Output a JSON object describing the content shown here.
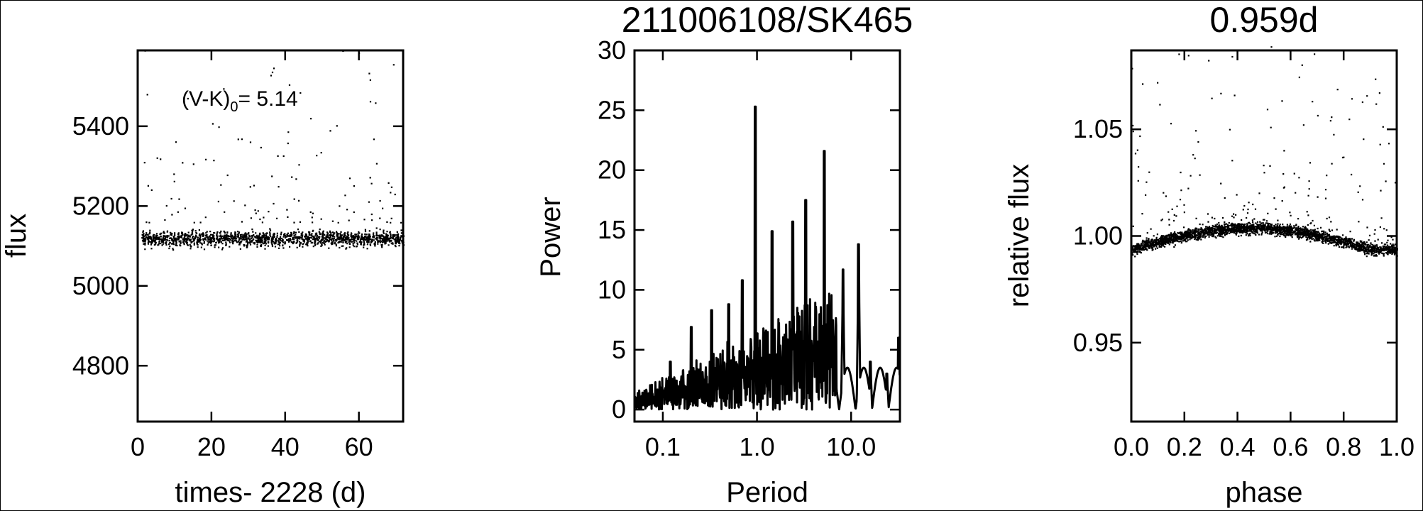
{
  "chart_data": [
    {
      "type": "scatter",
      "title": "",
      "xlabel": "times- 2228 (d)",
      "ylabel": "flux",
      "xlim": [
        0,
        72
      ],
      "ylim": [
        4660,
        5590
      ],
      "xticks": [
        "0",
        "20",
        "40",
        "60"
      ],
      "xtick_values": [
        0,
        20,
        40,
        60
      ],
      "yticks": [
        "4800",
        "5000",
        "5200",
        "5400"
      ],
      "ytick_values": [
        4800,
        5000,
        5200,
        5400
      ],
      "annotation": {
        "prefix": "(V-K)",
        "subscript": "0",
        "suffix": "= 5.14"
      },
      "description_values": {
        "baseline_flux": 5120,
        "scatter_band": [
          5080,
          5160
        ],
        "outliers_max": 5570
      }
    },
    {
      "type": "line",
      "title": "211006108/SK465",
      "xlabel": "Period",
      "ylabel": "Power",
      "xscale": "log",
      "xlim": [
        0.05,
        33
      ],
      "ylim": [
        -1,
        30
      ],
      "xticks": [
        "0.1",
        "1.0",
        "10.0"
      ],
      "xtick_values": [
        0.1,
        1.0,
        10.0
      ],
      "yticks": [
        "0",
        "5",
        "10",
        "15",
        "20",
        "25",
        "30"
      ],
      "ytick_values": [
        0,
        5,
        10,
        15,
        20,
        25,
        30
      ],
      "peaks": [
        {
          "period": 0.96,
          "power": 25.3
        },
        {
          "period": 5.2,
          "power": 21.6
        },
        {
          "period": 3.3,
          "power": 17.5
        },
        {
          "period": 1.45,
          "power": 14.9
        },
        {
          "period": 2.4,
          "power": 15.7
        },
        {
          "period": 12.0,
          "power": 13.8
        },
        {
          "period": 8.2,
          "power": 11.7
        },
        {
          "period": 0.7,
          "power": 10.8
        },
        {
          "period": 0.5,
          "power": 8.8
        },
        {
          "period": 0.33,
          "power": 8.3
        },
        {
          "period": 0.2,
          "power": 6.9
        },
        {
          "period": 0.12,
          "power": 4.0
        },
        {
          "period": 16.0,
          "power": 4.0
        },
        {
          "period": 24.0,
          "power": 3.0
        },
        {
          "period": 32.0,
          "power": 6.0
        }
      ]
    },
    {
      "type": "scatter",
      "title": "0.959d",
      "xlabel": "phase",
      "ylabel": "relative flux",
      "xlim": [
        0,
        1
      ],
      "ylim": [
        0.913,
        1.087
      ],
      "xticks": [
        "0.0",
        "0.2",
        "0.4",
        "0.6",
        "0.8",
        "1.0"
      ],
      "xtick_values": [
        0,
        0.2,
        0.4,
        0.6,
        0.8,
        1.0
      ],
      "yticks": [
        "0.95",
        "1.00",
        "1.05"
      ],
      "ytick_values": [
        0.95,
        1.0,
        1.05
      ],
      "description_values": {
        "baseline_at_phase_0": 0.994,
        "max_at_phase_0_45": 1.004,
        "baseline_at_phase_1": 0.994
      }
    }
  ]
}
